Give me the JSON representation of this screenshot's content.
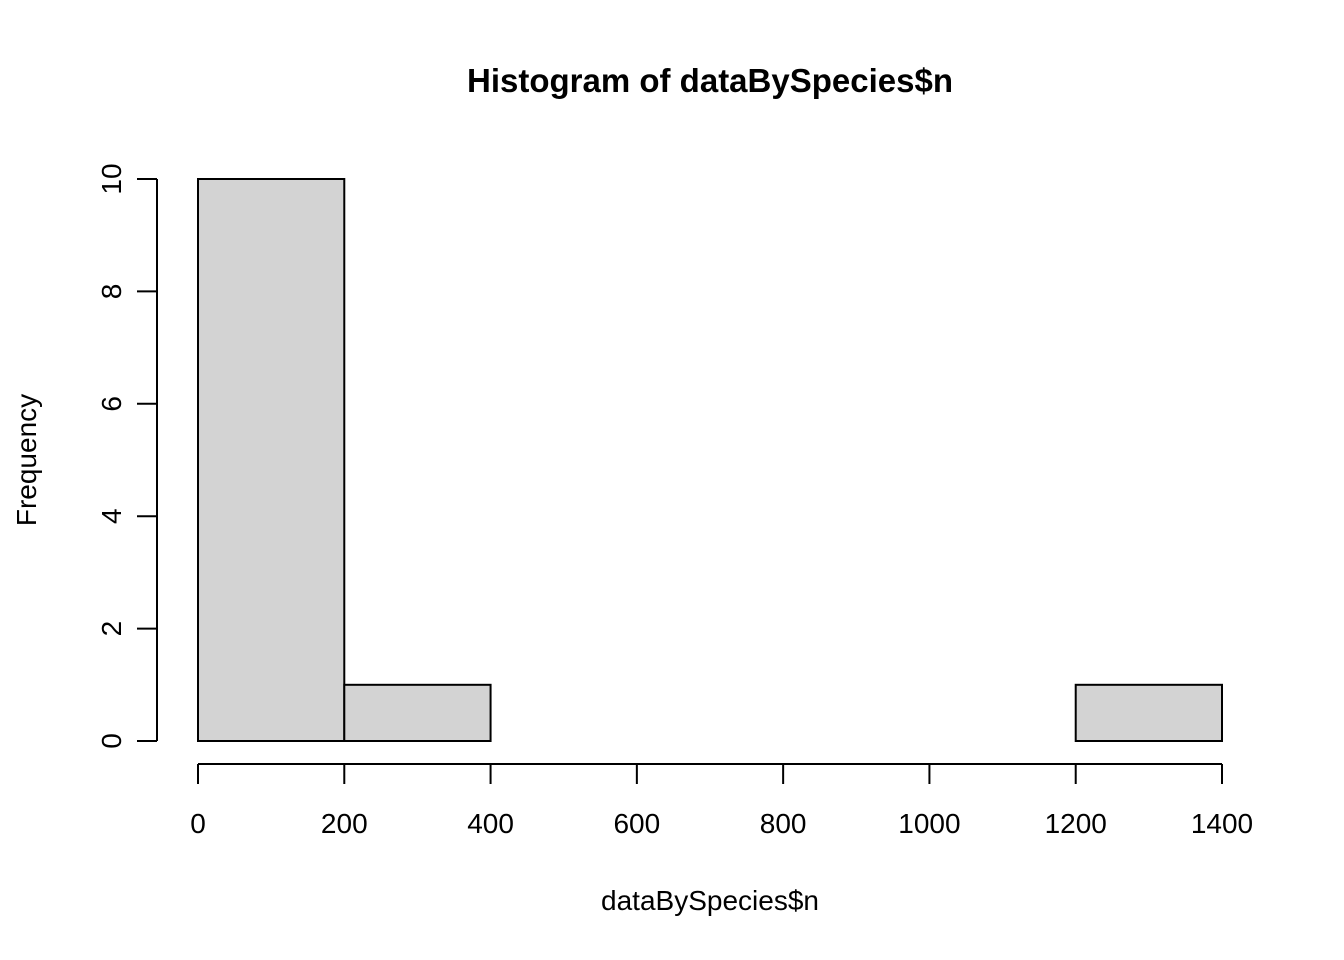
{
  "chart_data": {
    "type": "bar",
    "title": "Histogram of dataBySpecies$n",
    "xlabel": "dataBySpecies$n",
    "ylabel": "Frequency",
    "bins": [
      {
        "from": 0,
        "to": 200,
        "count": 10
      },
      {
        "from": 200,
        "to": 400,
        "count": 1
      },
      {
        "from": 400,
        "to": 600,
        "count": 0
      },
      {
        "from": 600,
        "to": 800,
        "count": 0
      },
      {
        "from": 800,
        "to": 1000,
        "count": 0
      },
      {
        "from": 1000,
        "to": 1200,
        "count": 0
      },
      {
        "from": 1200,
        "to": 1400,
        "count": 1
      }
    ],
    "xlim": [
      0,
      1400
    ],
    "ylim": [
      0,
      10
    ],
    "xticks": [
      0,
      200,
      400,
      600,
      800,
      1000,
      1200,
      1400
    ],
    "yticks": [
      0,
      2,
      4,
      6,
      8,
      10
    ],
    "bar_color": "#d3d3d3",
    "edge_color": "#000000",
    "grid": false
  }
}
